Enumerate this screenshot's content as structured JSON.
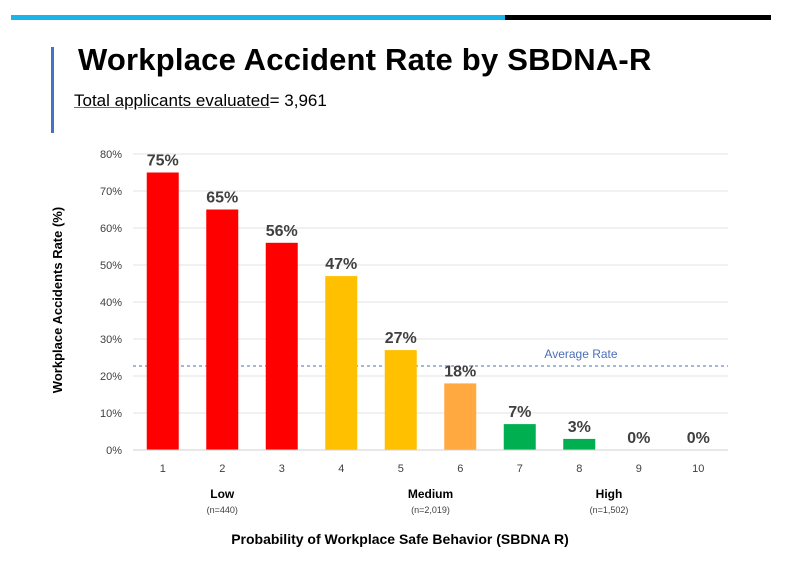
{
  "slide": {
    "title": "Workplace Accident Rate by SBDNA-R",
    "subtitle_underlined": "Total applicants evaluated",
    "subtitle_rest": "= 3,961"
  },
  "chart_data": {
    "type": "bar",
    "title": "",
    "xlabel": "Probability of Workplace Safe Behavior (SBDNA R)",
    "ylabel": "Workplace Accidents Rate (%)",
    "ylim": [
      0,
      80
    ],
    "yticks": [
      "0%",
      "10%",
      "20%",
      "30%",
      "40%",
      "50%",
      "60%",
      "70%",
      "80%"
    ],
    "categories": [
      "1",
      "2",
      "3",
      "4",
      "5",
      "6",
      "7",
      "8",
      "9",
      "10"
    ],
    "values": [
      75,
      65,
      56,
      47,
      27,
      18,
      7,
      3,
      0,
      0
    ],
    "data_labels": [
      "75%",
      "65%",
      "56%",
      "47%",
      "27%",
      "18%",
      "7%",
      "3%",
      "0%",
      "0%"
    ],
    "bar_colors": [
      "#ff0000",
      "#ff0000",
      "#ff0000",
      "#ffc000",
      "#ffc000",
      "#ffa940",
      "#00b050",
      "#00b050",
      "#00b050",
      "#00b050"
    ],
    "grid": true,
    "reference_line": {
      "label": "Average Rate",
      "value": 22.7,
      "color": "#4a6fb5"
    },
    "groups": [
      {
        "name": "Low",
        "n": "(n=440)",
        "from": 1,
        "to": 3
      },
      {
        "name": "Medium",
        "n": "(n=2,019)",
        "from": 4,
        "to": 7
      },
      {
        "name": "High",
        "n": "(n=1,502)",
        "from": 7,
        "to": 10
      }
    ]
  }
}
